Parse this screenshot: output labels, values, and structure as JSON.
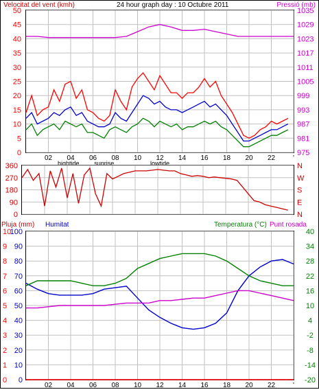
{
  "header": {
    "wind_label": "Velocitat del vent (kmh)",
    "title": "24 hour graph day : 10 Octubre 2011",
    "pressure_label": "Pressió (mb)"
  },
  "bottom_header": {
    "rain_label": "Pluja (mm)",
    "humidity_label": "Humitat",
    "temp_label": "Temperatura (°C)",
    "dew_label": "Punt rosada"
  },
  "colors": {
    "wind_avg": "#008000",
    "wind_gust": "#ff0000",
    "wind_mid": "#0000cc",
    "pressure": "#cc00cc",
    "direction": "#cc0000",
    "rain": "#ff0000",
    "humidity": "#0000cc",
    "temperature": "#008000",
    "dewpoint": "#cc00cc",
    "grid": "#c0c0c0"
  },
  "chart_data": [
    {
      "type": "line",
      "x_ticks": [
        "02",
        "04",
        "06",
        "08",
        "10",
        "12",
        "14",
        "16",
        "18",
        "20",
        "22",
        "'"
      ],
      "sub_labels": [
        {
          "x": 3.8,
          "text": "hightide"
        },
        {
          "x": 7.0,
          "text": "sunrise"
        },
        {
          "x": 12.0,
          "text": "lowtide"
        }
      ],
      "ylabel": "Velocitat del vent (kmh)",
      "ylim": [
        0,
        50
      ],
      "y_ticks": [
        0,
        5,
        10,
        15,
        20,
        25,
        30,
        35,
        40,
        45,
        50
      ],
      "y2label": "Pressió (mb)",
      "y2lim": [
        975,
        1035
      ],
      "y2_ticks": [
        975,
        981,
        987,
        993,
        999,
        1005,
        1011,
        1017,
        1023,
        1029,
        1035
      ],
      "series": [
        {
          "name": "gust",
          "axis": "left",
          "x": [
            0,
            0.5,
            1,
            1.5,
            2,
            2.5,
            3,
            3.5,
            4,
            4.5,
            5,
            5.5,
            6,
            6.5,
            7,
            7.5,
            8,
            8.5,
            9,
            9.5,
            10,
            10.5,
            11,
            11.5,
            12,
            12.5,
            13,
            13.5,
            14,
            14.5,
            15,
            15.5,
            16,
            16.5,
            17,
            17.5,
            18,
            18.5,
            19,
            19.5,
            20,
            20.5,
            21,
            21.5,
            22,
            22.5,
            23,
            23.5
          ],
          "values": [
            14,
            20,
            13,
            15,
            16,
            22,
            18,
            24,
            25,
            19,
            22,
            15,
            14,
            12,
            11,
            13,
            22,
            18,
            15,
            23,
            26,
            28,
            25,
            22,
            27,
            24,
            21,
            21,
            19,
            21,
            21,
            23,
            26,
            23,
            25,
            20,
            17,
            14,
            10,
            6,
            5,
            6,
            8,
            9,
            11,
            10,
            11,
            12
          ]
        },
        {
          "name": "mid",
          "axis": "left",
          "x": [
            0,
            0.5,
            1,
            1.5,
            2,
            2.5,
            3,
            3.5,
            4,
            4.5,
            5,
            5.5,
            6,
            6.5,
            7,
            7.5,
            8,
            8.5,
            9,
            9.5,
            10,
            10.5,
            11,
            11.5,
            12,
            12.5,
            13,
            13.5,
            14,
            14.5,
            15,
            15.5,
            16,
            16.5,
            17,
            17.5,
            18,
            18.5,
            19,
            19.5,
            20,
            20.5,
            21,
            21.5,
            22,
            22.5,
            23,
            23.5
          ],
          "values": [
            12,
            14,
            10,
            11,
            12,
            14,
            13,
            15,
            16,
            13,
            14,
            11,
            10,
            9,
            9,
            10,
            14,
            12,
            11,
            14,
            17,
            20,
            19,
            17,
            18,
            16,
            15,
            15,
            14,
            15,
            16,
            17,
            18,
            16,
            17,
            15,
            13,
            10,
            7,
            4,
            4,
            5,
            6,
            7,
            8,
            8,
            9,
            10
          ]
        },
        {
          "name": "avg",
          "axis": "left",
          "x": [
            0,
            0.5,
            1,
            1.5,
            2,
            2.5,
            3,
            3.5,
            4,
            4.5,
            5,
            5.5,
            6,
            6.5,
            7,
            7.5,
            8,
            8.5,
            9,
            9.5,
            10,
            10.5,
            11,
            11.5,
            12,
            12.5,
            13,
            13.5,
            14,
            14.5,
            15,
            15.5,
            16,
            16.5,
            17,
            17.5,
            18,
            18.5,
            19,
            19.5,
            20,
            20.5,
            21,
            21.5,
            22,
            22.5,
            23,
            23.5
          ],
          "values": [
            8,
            10,
            6,
            8,
            9,
            10,
            8,
            11,
            10,
            9,
            10,
            7,
            7,
            6,
            5,
            8,
            9,
            8,
            7,
            9,
            10,
            12,
            11,
            9,
            11,
            10,
            9,
            10,
            8,
            9,
            9,
            10,
            11,
            10,
            11,
            9,
            8,
            6,
            4,
            2,
            2,
            3,
            4,
            5,
            6,
            6,
            7,
            8
          ]
        },
        {
          "name": "pressure",
          "axis": "right",
          "x": [
            0,
            1,
            2,
            3,
            4,
            5,
            6,
            7,
            8,
            9,
            10,
            11,
            12,
            13,
            14,
            15,
            16,
            17,
            18,
            19,
            20,
            21,
            22,
            23,
            24
          ],
          "values": [
            1024,
            1024,
            1023.5,
            1023.5,
            1023.5,
            1023.5,
            1023.5,
            1023.5,
            1023.5,
            1024,
            1026,
            1028,
            1029,
            1028,
            1026.5,
            1026.5,
            1027,
            1026,
            1025,
            1024,
            1024,
            1024,
            1024,
            1024,
            1024
          ]
        }
      ]
    },
    {
      "type": "line",
      "y_ticks": [
        0,
        90,
        180,
        270,
        360
      ],
      "ylim": [
        0,
        360
      ],
      "y2_ticks": [
        "N",
        "W",
        "S",
        "E",
        "N"
      ],
      "series": [
        {
          "name": "direction",
          "x": [
            0,
            0.5,
            1,
            1.5,
            2,
            2.5,
            3,
            3.5,
            4,
            4.5,
            5,
            5.5,
            6,
            6.5,
            7,
            7.5,
            8,
            8.5,
            9,
            9.5,
            10,
            10.5,
            11,
            11.5,
            12,
            12.5,
            13,
            13.5,
            14,
            14.5,
            15,
            15.5,
            16,
            16.5,
            17,
            17.5,
            18,
            18.5,
            19,
            19.5,
            20,
            20.5,
            21,
            21.5,
            22,
            22.5,
            23,
            23.5
          ],
          "values": [
            270,
            330,
            250,
            300,
            60,
            320,
            200,
            340,
            120,
            300,
            80,
            290,
            340,
            150,
            60,
            300,
            260,
            280,
            300,
            310,
            320,
            320,
            320,
            325,
            330,
            325,
            320,
            320,
            300,
            290,
            280,
            285,
            280,
            270,
            275,
            270,
            265,
            260,
            250,
            200,
            150,
            100,
            90,
            70,
            60,
            50,
            40,
            30
          ]
        }
      ]
    },
    {
      "type": "line",
      "x_ticks": [
        "02",
        "04",
        "06",
        "08",
        "10",
        "12",
        "14",
        "16",
        "18",
        "20",
        "22",
        "'"
      ],
      "ylabel": "Pluja (mm)",
      "y_ticks_rain": [
        0,
        1,
        2,
        3,
        4,
        5,
        6,
        7,
        8,
        9,
        10
      ],
      "y_ticks_humidity": [
        0,
        10,
        20,
        30,
        40,
        50,
        60,
        70,
        80,
        90,
        100
      ],
      "y2label": "Temperatura (°C)",
      "y2lim": [
        -20,
        40
      ],
      "y2_ticks": [
        -20,
        -14,
        -8,
        -2,
        4,
        10,
        16,
        22,
        28,
        34,
        40
      ],
      "series": [
        {
          "name": "rain",
          "axis": "rain",
          "x": [
            0,
            24
          ],
          "values": [
            0,
            0
          ]
        },
        {
          "name": "humidity",
          "axis": "humidity",
          "x": [
            0,
            1,
            2,
            3,
            4,
            5,
            6,
            7,
            8,
            9,
            10,
            11,
            12,
            13,
            14,
            15,
            16,
            17,
            18,
            19,
            20,
            21,
            22,
            23,
            24
          ],
          "values": [
            65,
            61,
            58,
            57,
            57,
            57,
            58,
            61,
            62,
            63,
            55,
            47,
            42,
            38,
            35,
            34,
            35,
            38,
            45,
            60,
            70,
            76,
            80,
            81,
            78
          ]
        },
        {
          "name": "temperature",
          "axis": "temp",
          "x": [
            0,
            1,
            2,
            3,
            4,
            5,
            6,
            7,
            8,
            9,
            10,
            11,
            12,
            13,
            14,
            15,
            16,
            17,
            18,
            19,
            20,
            21,
            22,
            23,
            24
          ],
          "values": [
            18,
            20,
            20,
            20,
            20,
            19,
            18,
            18,
            19,
            21,
            25,
            27,
            29,
            30,
            31,
            31,
            31,
            30,
            28,
            25,
            22,
            20,
            19,
            18,
            18
          ]
        },
        {
          "name": "dewpoint",
          "axis": "temp",
          "x": [
            0,
            1,
            2,
            3,
            4,
            5,
            6,
            7,
            8,
            9,
            10,
            11,
            12,
            13,
            14,
            15,
            16,
            17,
            18,
            19,
            20,
            21,
            22,
            23,
            24
          ],
          "values": [
            9,
            9,
            9.5,
            10,
            10,
            10,
            10,
            10,
            10.5,
            11,
            11,
            11,
            12,
            12,
            12.5,
            13,
            13,
            14,
            15,
            16,
            16,
            15,
            14,
            13,
            12
          ]
        }
      ]
    }
  ]
}
